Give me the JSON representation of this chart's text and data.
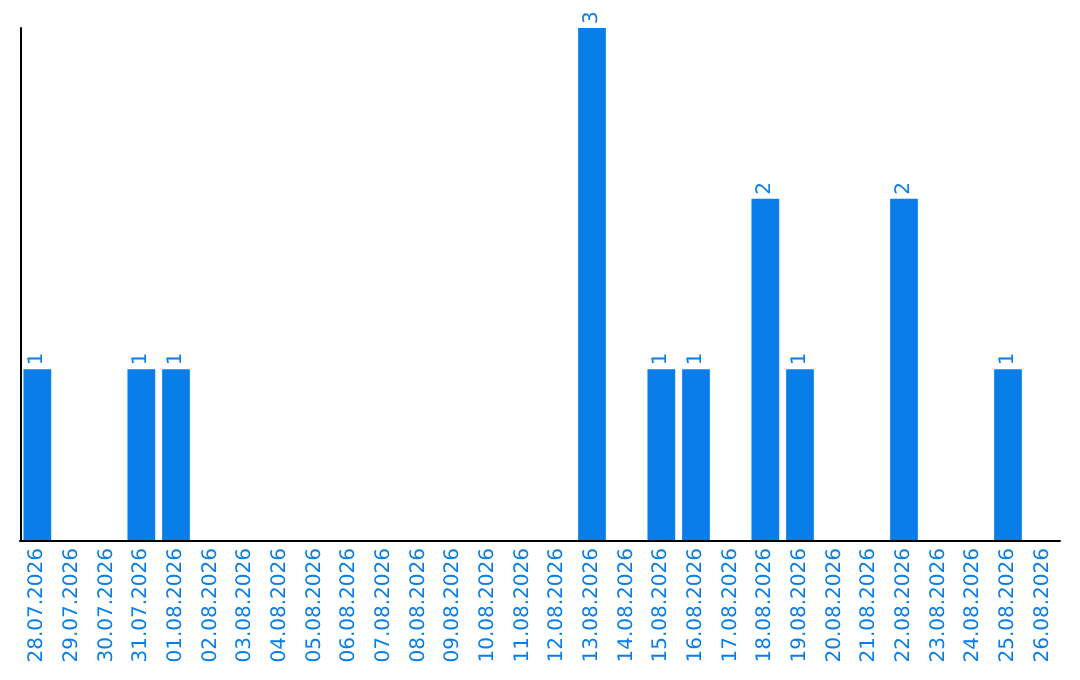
{
  "chart_data": {
    "type": "bar",
    "categories": [
      "28.07.2026",
      "29.07.2026",
      "30.07.2026",
      "31.07.2026",
      "01.08.2026",
      "02.08.2026",
      "03.08.2026",
      "04.08.2026",
      "05.08.2026",
      "06.08.2026",
      "07.08.2026",
      "08.08.2026",
      "09.08.2026",
      "10.08.2026",
      "11.08.2026",
      "12.08.2026",
      "13.08.2026",
      "14.08.2026",
      "15.08.2026",
      "16.08.2026",
      "17.08.2026",
      "18.08.2026",
      "19.08.2026",
      "20.08.2026",
      "21.08.2026",
      "22.08.2026",
      "23.08.2026",
      "24.08.2026",
      "25.08.2026",
      "26.08.2026"
    ],
    "values": [
      1,
      0,
      0,
      1,
      1,
      0,
      0,
      0,
      0,
      0,
      0,
      0,
      0,
      0,
      0,
      0,
      3,
      0,
      1,
      1,
      0,
      2,
      1,
      0,
      0,
      2,
      0,
      0,
      1,
      0
    ],
    "value_labels": [
      "1",
      null,
      null,
      "1",
      "1",
      null,
      null,
      null,
      null,
      null,
      null,
      null,
      null,
      null,
      null,
      null,
      "3",
      null,
      "1",
      "1",
      null,
      "2",
      "1",
      null,
      null,
      "2",
      null,
      null,
      "1",
      null
    ],
    "color": "#0a7ee8",
    "ylim": [
      0,
      3
    ],
    "tick_labels": "x"
  }
}
